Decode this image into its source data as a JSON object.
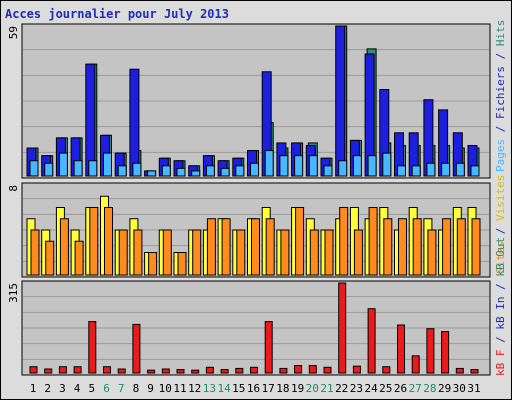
{
  "title": "Acces journalier pour July 2013",
  "colors": {
    "pages": "#47b8ff",
    "hits": "#2d8f77",
    "files": "#1d1fe0",
    "visits": "#ffff3a",
    "sites": "#ff8a1e",
    "kb_in": "#1d2db5",
    "kb_out": "#2d8f77",
    "kb_f": "#ee1a1a",
    "weekend": "#1f8c6a",
    "frame_bg": "#dcdcdc",
    "panel_bg": "#c4c4c4"
  },
  "right_labels": {
    "top": [
      {
        "text": "Pages",
        "color": "#47b8ff"
      },
      {
        "text": " / ",
        "color": "#1d2db5"
      },
      {
        "text": "Fichiers",
        "color": "#1d2db5"
      },
      {
        "text": " / ",
        "color": "#1d2db5"
      },
      {
        "text": "Hits",
        "color": "#2d8f77"
      }
    ],
    "middle": [
      {
        "text": "Sites",
        "color": "#ff8a1e"
      },
      {
        "text": " / ",
        "color": "#1d2db5"
      },
      {
        "text": "Visites",
        "color": "#d8c000"
      }
    ],
    "bottom": [
      {
        "text": "kB F",
        "color": "#ee1a1a"
      },
      {
        "text": " / ",
        "color": "#1d2db5"
      },
      {
        "text": "kB In",
        "color": "#1d2db5"
      },
      {
        "text": " / ",
        "color": "#1d2db5"
      },
      {
        "text": "kB Out",
        "color": "#2d8f77"
      }
    ]
  },
  "chart_data": [
    {
      "type": "bar",
      "panel": "top",
      "max_label": "59",
      "ylim": [
        0,
        59
      ],
      "categories": [
        "1",
        "2",
        "3",
        "4",
        "5",
        "6",
        "7",
        "8",
        "9",
        "10",
        "11",
        "12",
        "13",
        "14",
        "15",
        "16",
        "17",
        "18",
        "19",
        "20",
        "21",
        "22",
        "23",
        "24",
        "25",
        "26",
        "27",
        "28",
        "29",
        "30",
        "31"
      ],
      "weekend_days": [
        "6",
        "7",
        "13",
        "14",
        "20",
        "21",
        "27",
        "28"
      ],
      "series": [
        {
          "name": "Hits",
          "key": "hits",
          "values": [
            11,
            8,
            15,
            15,
            44,
            16,
            9,
            10,
            2,
            7,
            6,
            4,
            8,
            6,
            7,
            10,
            21,
            11,
            13,
            13,
            7,
            59,
            14,
            50,
            13,
            12,
            12,
            12,
            12,
            11,
            11
          ]
        },
        {
          "name": "Fichiers",
          "key": "files",
          "values": [
            11,
            8,
            15,
            15,
            44,
            16,
            9,
            42,
            2,
            7,
            6,
            4,
            8,
            6,
            7,
            10,
            41,
            13,
            13,
            12,
            7,
            59,
            14,
            48,
            34,
            17,
            17,
            30,
            26,
            17,
            12
          ]
        },
        {
          "name": "Pages",
          "key": "pages",
          "values": [
            6,
            5,
            9,
            6,
            6,
            9,
            4,
            5,
            2,
            4,
            3,
            2,
            4,
            3,
            4,
            5,
            10,
            8,
            8,
            8,
            4,
            6,
            8,
            8,
            9,
            4,
            4,
            5,
            5,
            5,
            4
          ]
        }
      ]
    },
    {
      "type": "bar",
      "panel": "middle",
      "max_label": "8",
      "ylim": [
        0,
        8
      ],
      "categories": [
        "1",
        "2",
        "3",
        "4",
        "5",
        "6",
        "7",
        "8",
        "9",
        "10",
        "11",
        "12",
        "13",
        "14",
        "15",
        "16",
        "17",
        "18",
        "19",
        "20",
        "21",
        "22",
        "23",
        "24",
        "25",
        "26",
        "27",
        "28",
        "29",
        "30",
        "31"
      ],
      "series": [
        {
          "name": "Visites",
          "key": "visits",
          "values": [
            5,
            4,
            6,
            4,
            6,
            7,
            4,
            5,
            2,
            4,
            2,
            4,
            4,
            5,
            4,
            5,
            6,
            4,
            6,
            5,
            4,
            5,
            6,
            5,
            6,
            4,
            6,
            5,
            4,
            6,
            6
          ]
        },
        {
          "name": "Sites",
          "key": "sites",
          "values": [
            4,
            3,
            5,
            3,
            6,
            6,
            4,
            4,
            2,
            4,
            2,
            4,
            5,
            5,
            4,
            5,
            5,
            4,
            6,
            4,
            4,
            6,
            4,
            6,
            5,
            5,
            5,
            4,
            5,
            5,
            5
          ]
        }
      ]
    },
    {
      "type": "bar",
      "panel": "bottom",
      "max_label": "315",
      "ylim": [
        0,
        315
      ],
      "categories": [
        "1",
        "2",
        "3",
        "4",
        "5",
        "6",
        "7",
        "8",
        "9",
        "10",
        "11",
        "12",
        "13",
        "14",
        "15",
        "16",
        "17",
        "18",
        "19",
        "20",
        "21",
        "22",
        "23",
        "24",
        "25",
        "26",
        "27",
        "28",
        "29",
        "30",
        "31"
      ],
      "series": [
        {
          "name": "kB F",
          "key": "kb_f",
          "values": [
            22,
            14,
            22,
            22,
            180,
            22,
            14,
            170,
            10,
            14,
            12,
            10,
            20,
            12,
            16,
            20,
            180,
            16,
            26,
            26,
            20,
            315,
            24,
            225,
            22,
            168,
            60,
            155,
            145,
            16,
            12
          ]
        }
      ]
    }
  ]
}
